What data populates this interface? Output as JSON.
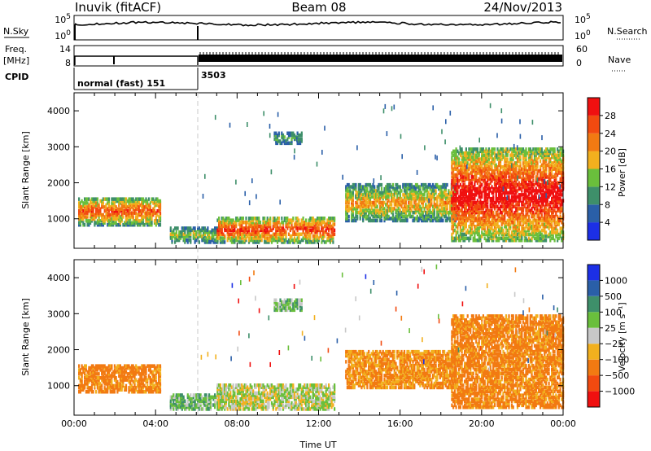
{
  "header": {
    "station": "Inuvik (fitACF)",
    "beam": "Beam 08",
    "date": "24/Nov/2013"
  },
  "strip_labels": {
    "nsky": "N.Sky",
    "nsearch": "N.Search",
    "freq": "Freq.",
    "freq_unit": "[MHz]",
    "nave": "Nave",
    "cpid": "CPID",
    "log_top": "10^5",
    "log_bottom": "10^0",
    "freq_top": "14",
    "freq_bottom": "8",
    "nave_top": "60",
    "nave_bottom": "0"
  },
  "cpid_segments": [
    {
      "label": "normal (fast) 151",
      "start_hour": 0,
      "end_hour": 6
    },
    {
      "label": "3503",
      "start_hour": 6,
      "end_hour": 24
    }
  ],
  "chart_data": [
    {
      "type": "heatmap",
      "name": "power",
      "ylabel": "Slant Range [km]",
      "xlabel": "",
      "x_range_hours": [
        0,
        24
      ],
      "ylim": [
        180,
        4500
      ],
      "yticks": [
        1000,
        2000,
        3000,
        4000
      ],
      "colorbar": {
        "label": "Power [dB]",
        "ticks": [
          "4",
          "8",
          "12",
          "16",
          "20",
          "24",
          "28"
        ],
        "colors": [
          "#1c2fe6",
          "#2a5fa8",
          "#3e8f6a",
          "#6abf3c",
          "#f2b01e",
          "#f27a12",
          "#f24a10",
          "#f01010"
        ]
      },
      "echo_regions": [
        {
          "t0": 0.2,
          "t1": 4.2,
          "r0": 780,
          "r1": 1550,
          "level": 20
        },
        {
          "t0": 4.7,
          "t1": 7.2,
          "r0": 300,
          "r1": 700,
          "level": 12
        },
        {
          "t0": 7.0,
          "t1": 12.8,
          "r0": 300,
          "r1": 1000,
          "level": 22
        },
        {
          "t0": 9.8,
          "t1": 11.2,
          "r0": 3050,
          "r1": 3350,
          "level": 8
        },
        {
          "t0": 13.3,
          "t1": 18.7,
          "r0": 900,
          "r1": 1900,
          "level": 16
        },
        {
          "t0": 18.5,
          "t1": 24.0,
          "r0": 350,
          "r1": 2900,
          "level": 26
        }
      ]
    },
    {
      "type": "heatmap",
      "name": "velocity",
      "ylabel": "Slant Range [km]",
      "xlabel": "Time UT",
      "x_range_hours": [
        0,
        24
      ],
      "ylim": [
        180,
        4500
      ],
      "yticks": [
        1000,
        2000,
        3000,
        4000
      ],
      "xtick_labels": [
        "00:00",
        "04:00",
        "08:00",
        "12:00",
        "16:00",
        "20:00",
        "00:00"
      ],
      "colorbar": {
        "label": "Velocity [m s⁻¹]",
        "ticks": [
          "1000",
          "500",
          "100",
          "25",
          "−25",
          "−100",
          "−500",
          "−1000"
        ],
        "colors": [
          "#1c2fe6",
          "#2a5fa8",
          "#3e8f6a",
          "#6abf3c",
          "#c8c8c8",
          "#f2b01e",
          "#f27a12",
          "#f24a10",
          "#f01010"
        ]
      },
      "echo_regions": [
        {
          "t0": 0.2,
          "t1": 4.2,
          "r0": 780,
          "r1": 1550,
          "velocity": -150
        },
        {
          "t0": 4.7,
          "t1": 7.2,
          "r0": 300,
          "r1": 700,
          "velocity": 80
        },
        {
          "t0": 7.0,
          "t1": 12.8,
          "r0": 300,
          "r1": 1000,
          "velocity": 10
        },
        {
          "t0": 9.8,
          "t1": 11.2,
          "r0": 3050,
          "r1": 3350,
          "velocity": 60
        },
        {
          "t0": 13.3,
          "t1": 18.7,
          "r0": 900,
          "r1": 1900,
          "velocity": -120
        },
        {
          "t0": 18.5,
          "t1": 24.0,
          "r0": 350,
          "r1": 2900,
          "velocity": -150
        }
      ]
    }
  ]
}
